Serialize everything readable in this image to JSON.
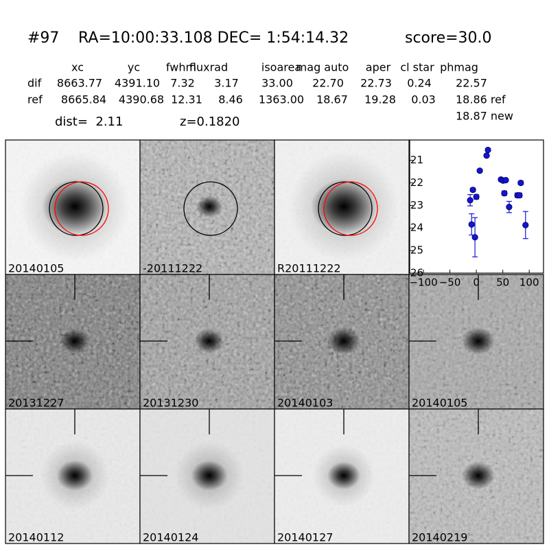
{
  "header": {
    "id": "#97",
    "coords": "RA=10:00:33.108 DEC= 1:54:14.32",
    "score": "score=30.0"
  },
  "table": {
    "columns": [
      "xc",
      "yc",
      "fwhm",
      "fluxrad",
      "isoarea",
      "mag auto",
      "aper",
      "cl star",
      "phmag"
    ],
    "rows": [
      {
        "name": "dif",
        "cells": [
          "8663.77",
          "4391.10",
          "7.32",
          "3.17",
          "33.00",
          "22.70",
          "22.73",
          "0.24",
          "22.57"
        ]
      },
      {
        "name": "ref",
        "cells": [
          "8665.84",
          "4390.68",
          "12.31",
          "8.46",
          "1363.00",
          "18.67",
          "19.28",
          "0.03",
          "18.86 ref"
        ]
      }
    ],
    "extra": "18.87 new"
  },
  "dist": "dist=  2.11",
  "z": "z=0.1820",
  "panels": [
    {
      "label": "20140105",
      "color": "#000000"
    },
    {
      "label": "-20111222",
      "color": "#000000"
    },
    {
      "label": "R20111222",
      "color": "#000000"
    },
    {
      "label": "20131227",
      "color": "#000000"
    },
    {
      "label": "20131230",
      "color": "#000000"
    },
    {
      "label": "20140103",
      "color": "#000000"
    },
    {
      "label": "20140105",
      "color": "#ff0000"
    },
    {
      "label": "20140112",
      "color": "#000000"
    },
    {
      "label": "20140124",
      "color": "#000000"
    },
    {
      "label": "20140127",
      "color": "#000000"
    },
    {
      "label": "20140219",
      "color": "#000000"
    }
  ],
  "chart_data": {
    "type": "scatter",
    "series": [
      {
        "color": "#1414d2",
        "x": [
          -11.7,
          -6.5,
          -9,
          -2.6,
          0,
          6.5,
          19.4,
          22,
          46.6,
          50.5,
          55.7,
          53,
          62,
          77.7,
          81.6,
          84,
          93
        ],
        "values": [
          22.77,
          22.31,
          23.84,
          24.41,
          22.62,
          21.46,
          20.79,
          20.54,
          21.85,
          21.9,
          21.88,
          22.46,
          23.07,
          22.55,
          22.55,
          22.0,
          23.87
        ],
        "errors": [
          0.25,
          0.08,
          0.47,
          0.87,
          0.1,
          0.05,
          0.05,
          0.05,
          0.07,
          0.07,
          0.07,
          0.1,
          0.25,
          0.1,
          0.1,
          0.08,
          0.6
        ]
      }
    ],
    "xlim": [
      -126,
      127
    ],
    "ylim": [
      26,
      20.1
    ],
    "xticks": [
      {
        "value": -100,
        "label": "−100"
      },
      {
        "value": -50,
        "label": "−50"
      },
      0,
      50,
      100
    ],
    "yticks": [
      21,
      22,
      23,
      24,
      25,
      26
    ]
  }
}
